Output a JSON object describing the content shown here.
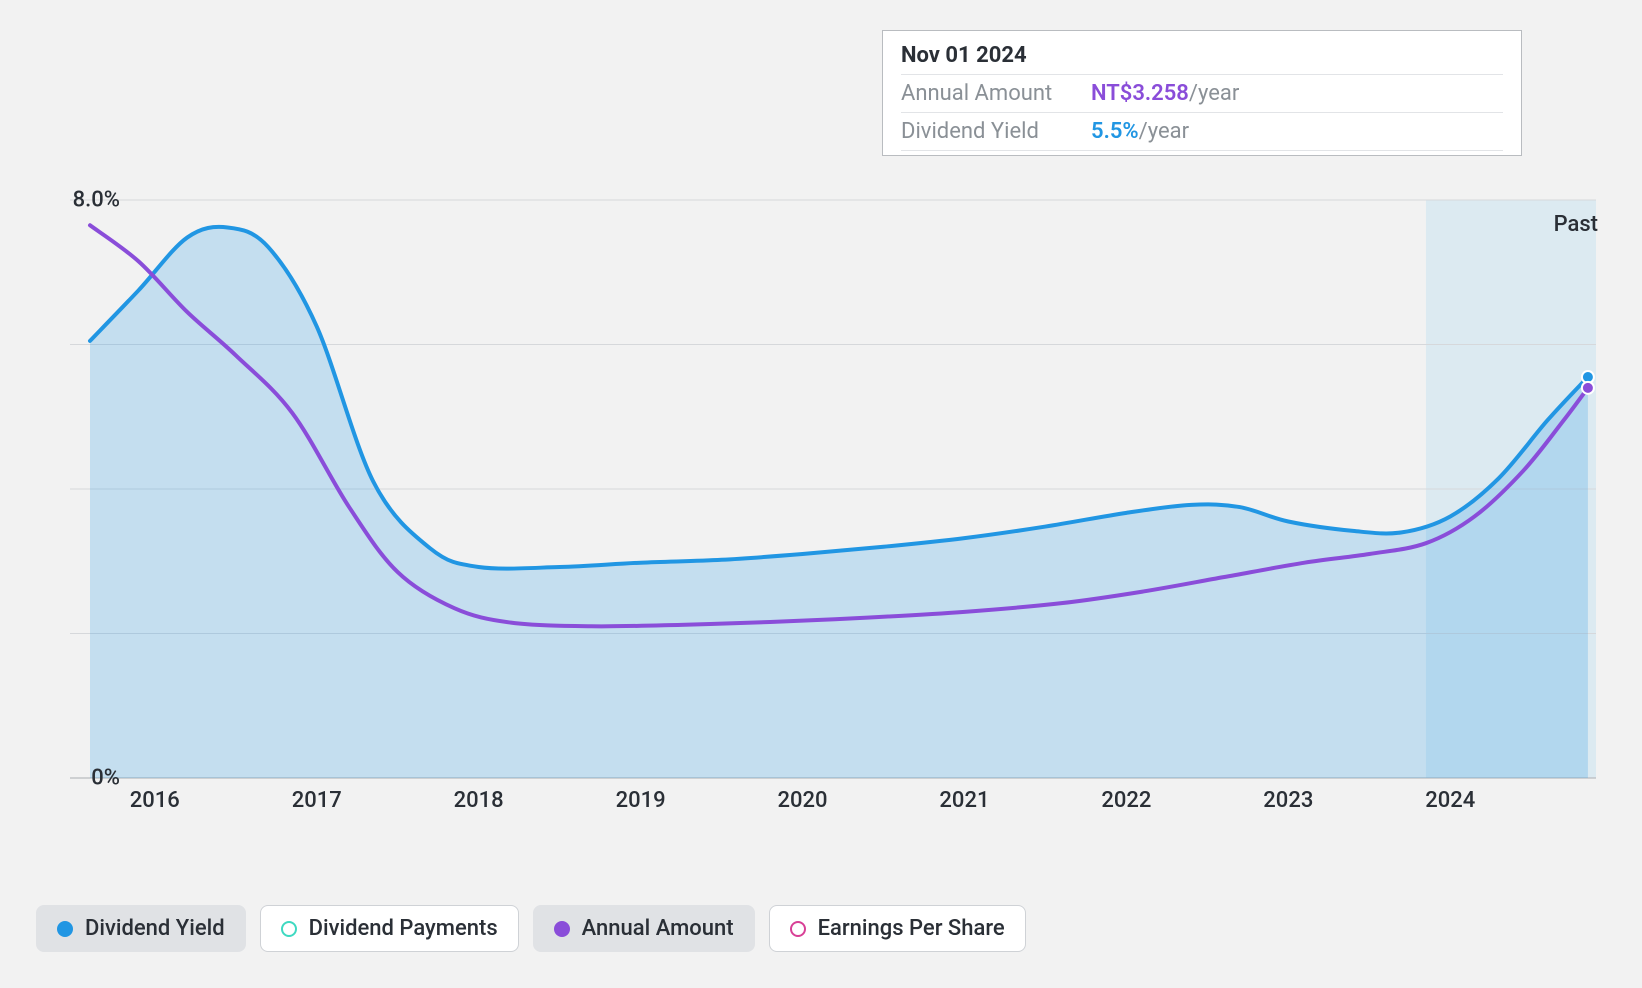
{
  "chart": {
    "type": "line-area",
    "background_color": "#f2f2f2",
    "plot_background_color": "#f2f2f2",
    "grid_color": "#d6d8db",
    "baseline_color": "#b8bbbf",
    "past_region_color": "#c0dff0",
    "past_label": "Past",
    "y_axis": {
      "min": 0,
      "max": 8,
      "ticks": [
        0,
        8
      ],
      "tick_labels": [
        "0%",
        "8.0%"
      ],
      "gridlines": [
        0,
        2,
        4,
        6,
        8
      ]
    },
    "x_axis": {
      "min": 2015.6,
      "max": 2024.9,
      "ticks": [
        2016,
        2017,
        2018,
        2019,
        2020,
        2021,
        2022,
        2023,
        2024
      ],
      "tick_labels": [
        "2016",
        "2017",
        "2018",
        "2019",
        "2020",
        "2021",
        "2022",
        "2023",
        "2024"
      ],
      "past_region_start": 2023.85
    },
    "series": [
      {
        "name": "Dividend Yield",
        "color": "#2196e3",
        "fill_color": "#2196e3",
        "fill_opacity": 0.22,
        "line_width": 4,
        "has_fill": true,
        "points": [
          [
            2015.6,
            6.05
          ],
          [
            2015.9,
            6.75
          ],
          [
            2016.2,
            7.48
          ],
          [
            2016.45,
            7.62
          ],
          [
            2016.7,
            7.35
          ],
          [
            2017.0,
            6.25
          ],
          [
            2017.35,
            4.1
          ],
          [
            2017.7,
            3.18
          ],
          [
            2018.0,
            2.92
          ],
          [
            2018.5,
            2.92
          ],
          [
            2019.0,
            2.98
          ],
          [
            2019.5,
            3.02
          ],
          [
            2020.0,
            3.1
          ],
          [
            2020.5,
            3.2
          ],
          [
            2021.0,
            3.32
          ],
          [
            2021.5,
            3.48
          ],
          [
            2022.0,
            3.67
          ],
          [
            2022.4,
            3.78
          ],
          [
            2022.7,
            3.75
          ],
          [
            2023.0,
            3.55
          ],
          [
            2023.4,
            3.42
          ],
          [
            2023.7,
            3.4
          ],
          [
            2024.0,
            3.62
          ],
          [
            2024.3,
            4.15
          ],
          [
            2024.6,
            4.95
          ],
          [
            2024.85,
            5.55
          ]
        ],
        "end_marker": true
      },
      {
        "name": "Annual Amount",
        "color": "#8a4dd9",
        "line_width": 4,
        "has_fill": false,
        "points": [
          [
            2015.6,
            7.65
          ],
          [
            2015.9,
            7.15
          ],
          [
            2016.2,
            6.45
          ],
          [
            2016.5,
            5.85
          ],
          [
            2016.85,
            5.05
          ],
          [
            2017.2,
            3.75
          ],
          [
            2017.5,
            2.85
          ],
          [
            2017.85,
            2.35
          ],
          [
            2018.2,
            2.15
          ],
          [
            2018.7,
            2.1
          ],
          [
            2019.25,
            2.12
          ],
          [
            2019.8,
            2.16
          ],
          [
            2020.4,
            2.22
          ],
          [
            2021.0,
            2.3
          ],
          [
            2021.6,
            2.42
          ],
          [
            2022.1,
            2.58
          ],
          [
            2022.6,
            2.78
          ],
          [
            2023.1,
            2.98
          ],
          [
            2023.5,
            3.1
          ],
          [
            2023.85,
            3.25
          ],
          [
            2024.15,
            3.62
          ],
          [
            2024.45,
            4.25
          ],
          [
            2024.7,
            4.95
          ],
          [
            2024.85,
            5.4
          ]
        ],
        "end_marker": true
      }
    ]
  },
  "tooltip": {
    "title": "Nov 01 2024",
    "rows": [
      {
        "label": "Annual Amount",
        "value": "NT$3.258",
        "unit": "/year",
        "color": "#8a4dd9"
      },
      {
        "label": "Dividend Yield",
        "value": "5.5%",
        "unit": "/year",
        "color": "#2196e3"
      }
    ]
  },
  "legend": {
    "items": [
      {
        "label": "Dividend Yield",
        "color": "#2196e3",
        "filled": true,
        "active": true
      },
      {
        "label": "Dividend Payments",
        "color": "#3fd9c1",
        "filled": false,
        "active": false
      },
      {
        "label": "Annual Amount",
        "color": "#8a4dd9",
        "filled": true,
        "active": true
      },
      {
        "label": "Earnings Per Share",
        "color": "#d84096",
        "filled": false,
        "active": false
      }
    ]
  }
}
